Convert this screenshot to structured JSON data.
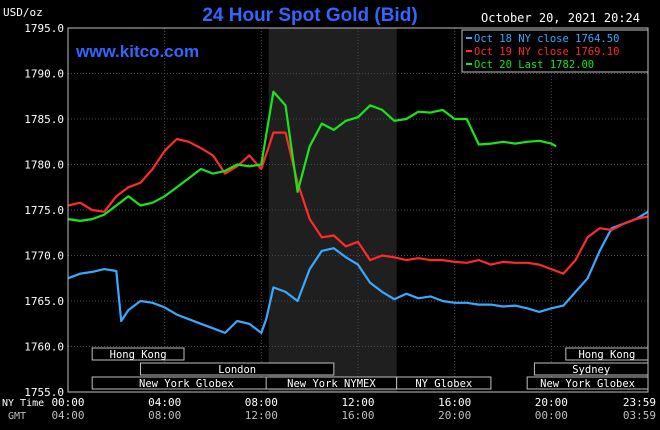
{
  "chart_data": {
    "type": "line",
    "title": "24 Hour Spot Gold (Bid)",
    "timestamp": "October 20, 2021 20:24",
    "unit_label": "USD/oz",
    "watermark": "www.kitco.com",
    "ylim": [
      1755,
      1795
    ],
    "y_ticks": [
      "1795.0",
      "1790.0",
      "1785.0",
      "1780.0",
      "1775.0",
      "1770.0",
      "1765.0",
      "1760.0",
      "1755.0"
    ],
    "y_tick_values": [
      1795,
      1790,
      1785,
      1780,
      1775,
      1770,
      1765,
      1760,
      1755
    ],
    "xlim": [
      0,
      24
    ],
    "x_tick_values": [
      0,
      4,
      8,
      12,
      16,
      20,
      24
    ],
    "x_ticks_ny": [
      "00:00",
      "04:00",
      "08:00",
      "12:00",
      "16:00",
      "20:00",
      "23:59"
    ],
    "x_ticks_gmt": [
      "04:00",
      "08:00",
      "12:00",
      "16:00",
      "20:00",
      "00:00",
      "03:59"
    ],
    "x_row_label_ny": "NY Time",
    "x_row_label_gmt": "GMT",
    "shaded_hours": [
      8.3,
      13.6
    ],
    "legend": [
      {
        "label": "Oct 18 NY close 1764.50",
        "color": "#3aa8ff"
      },
      {
        "label": "Oct 19 NY close 1769.10",
        "color": "#ff2a2a"
      },
      {
        "label": "Oct 20 Last 1782.00",
        "color": "#19e619"
      }
    ],
    "sessions": [
      {
        "label": "Hong Kong",
        "start": 1.0,
        "end": 4.8,
        "row": 0
      },
      {
        "label": "London",
        "start": 3.0,
        "end": 11.0,
        "row": 1
      },
      {
        "label": "New York Globex",
        "start": 1.0,
        "end": 8.8,
        "row": 2
      },
      {
        "label": "New York NYMEX",
        "start": 8.2,
        "end": 13.6,
        "row": 2
      },
      {
        "label": "NY Globex",
        "start": 13.6,
        "end": 17.5,
        "row": 2
      },
      {
        "label": "Sydney",
        "start": 19.3,
        "end": 24.0,
        "row": 1
      },
      {
        "label": "Hong Kong",
        "start": 20.6,
        "end": 24.0,
        "row": 0
      },
      {
        "label": "New York Globex",
        "start": 19.0,
        "end": 24.0,
        "row": 2
      }
    ],
    "series": [
      {
        "color": "#3aa8ff",
        "x": [
          0,
          0.5,
          1.0,
          1.5,
          2.0,
          2.2,
          2.5,
          3.0,
          3.5,
          4.0,
          4.5,
          5.0,
          5.5,
          6.0,
          6.5,
          7.0,
          7.5,
          8.0,
          8.2,
          8.5,
          9.0,
          9.5,
          10.0,
          10.5,
          11.0,
          11.5,
          12.0,
          12.5,
          13.0,
          13.5,
          14.0,
          14.5,
          15.0,
          15.5,
          16.0,
          16.5,
          17.0,
          17.5,
          18.0,
          18.5,
          19.0,
          19.5,
          20.0,
          20.5,
          21.0,
          21.5,
          22.0,
          22.5,
          23.0,
          23.5,
          24.0
        ],
        "y": [
          1767.5,
          1768.0,
          1768.2,
          1768.5,
          1768.3,
          1762.8,
          1764.0,
          1765.0,
          1764.8,
          1764.3,
          1763.5,
          1763.0,
          1762.5,
          1762.0,
          1761.5,
          1762.8,
          1762.5,
          1761.5,
          1763.0,
          1766.5,
          1766.0,
          1765.0,
          1768.5,
          1770.5,
          1770.8,
          1769.8,
          1769.0,
          1767.0,
          1766.0,
          1765.2,
          1765.8,
          1765.3,
          1765.5,
          1765.0,
          1764.8,
          1764.8,
          1764.6,
          1764.6,
          1764.4,
          1764.5,
          1764.2,
          1763.8,
          1764.2,
          1764.5,
          1766.0,
          1767.5,
          1770.5,
          1773.0,
          1773.5,
          1774.0,
          1774.8
        ]
      },
      {
        "color": "#ff2a2a",
        "x": [
          0,
          0.5,
          1.0,
          1.5,
          2.0,
          2.5,
          3.0,
          3.5,
          4.0,
          4.5,
          5.0,
          5.5,
          6.0,
          6.5,
          7.0,
          7.5,
          8.0,
          8.5,
          9.0,
          9.5,
          10.0,
          10.5,
          11.0,
          11.5,
          12.0,
          12.5,
          13.0,
          13.5,
          14.0,
          14.5,
          15.0,
          15.5,
          16.0,
          16.5,
          17.0,
          17.5,
          18.0,
          18.5,
          19.0,
          19.5,
          20.0,
          20.5,
          21.0,
          21.5,
          22.0,
          22.5,
          23.0,
          23.5,
          24.0
        ],
        "y": [
          1775.5,
          1775.8,
          1775.0,
          1774.8,
          1776.5,
          1777.5,
          1778.0,
          1779.5,
          1781.5,
          1782.8,
          1782.5,
          1781.8,
          1781.0,
          1779.0,
          1779.8,
          1781.0,
          1779.5,
          1783.5,
          1783.5,
          1778.0,
          1774.0,
          1772.0,
          1772.2,
          1771.0,
          1771.5,
          1769.5,
          1770.0,
          1769.8,
          1769.5,
          1769.7,
          1769.5,
          1769.5,
          1769.3,
          1769.2,
          1769.5,
          1769.0,
          1769.3,
          1769.2,
          1769.2,
          1769.0,
          1768.5,
          1768.0,
          1769.5,
          1772.0,
          1773.0,
          1772.8,
          1773.5,
          1774.0,
          1774.3
        ]
      },
      {
        "color": "#19e619",
        "x": [
          0,
          0.5,
          1.0,
          1.5,
          2.0,
          2.5,
          3.0,
          3.5,
          4.0,
          4.5,
          5.0,
          5.5,
          6.0,
          6.5,
          7.0,
          7.5,
          8.0,
          8.5,
          9.0,
          9.5,
          10.0,
          10.5,
          11.0,
          11.5,
          12.0,
          12.5,
          13.0,
          13.5,
          14.0,
          14.5,
          15.0,
          15.5,
          16.0,
          16.5,
          17.0,
          17.5,
          18.0,
          18.5,
          19.0,
          19.5,
          20.0,
          20.2
        ],
        "y": [
          1774.0,
          1773.8,
          1774.0,
          1774.5,
          1775.5,
          1776.5,
          1775.5,
          1775.8,
          1776.5,
          1777.5,
          1778.5,
          1779.5,
          1779.0,
          1779.3,
          1780.0,
          1779.8,
          1780.0,
          1788.0,
          1786.5,
          1777.0,
          1782.0,
          1784.5,
          1783.8,
          1784.8,
          1785.2,
          1786.5,
          1786.0,
          1784.8,
          1785.0,
          1785.8,
          1785.7,
          1786.0,
          1785.0,
          1785.0,
          1782.2,
          1782.3,
          1782.5,
          1782.3,
          1782.5,
          1782.6,
          1782.3,
          1782.0
        ]
      }
    ]
  }
}
